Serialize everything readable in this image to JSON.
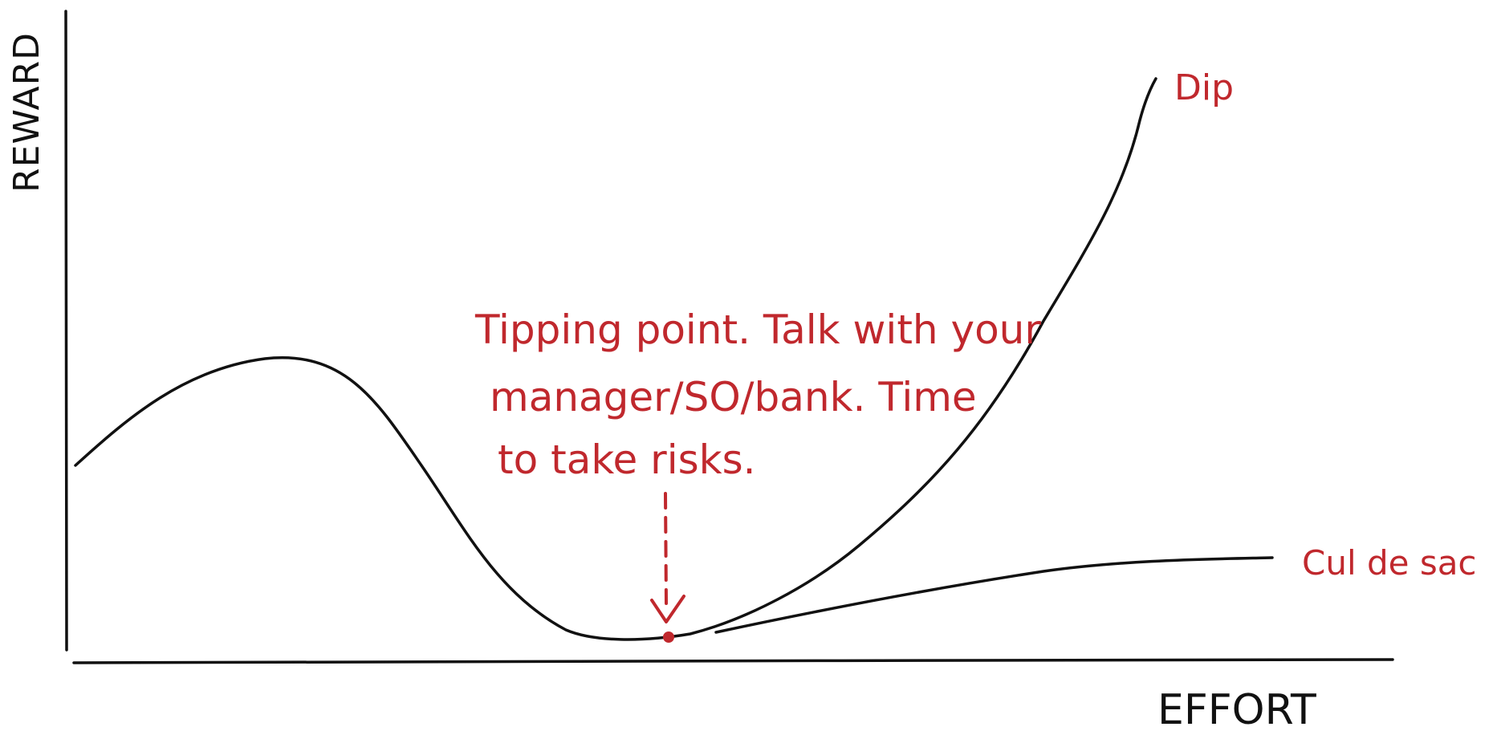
{
  "axes": {
    "y_label": "REWARD",
    "x_label": "EFFORT"
  },
  "curves": {
    "dip_label": "Dip",
    "cul_de_sac_label": "Cul de sac"
  },
  "annotation": {
    "line1": "Tipping point. Talk with your",
    "line2": "manager/SO/bank. Time",
    "line3": "to take risks."
  },
  "colors": {
    "ink": "#111111",
    "accent": "#c0282d"
  }
}
